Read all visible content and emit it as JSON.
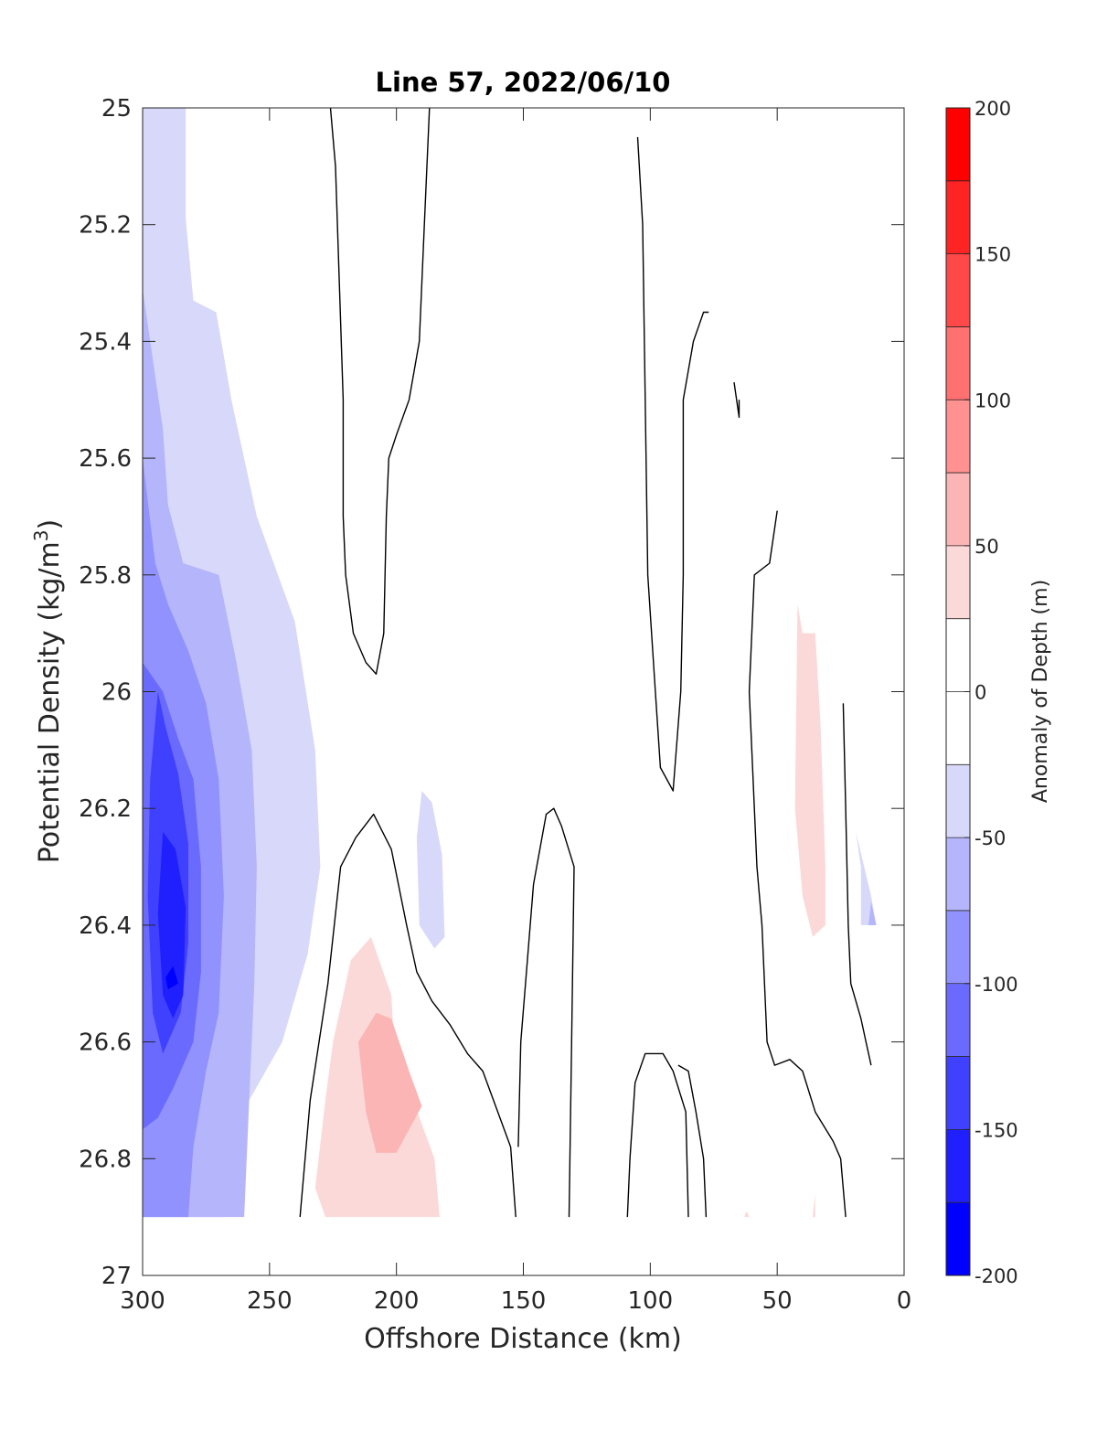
{
  "chart_data": {
    "type": "heatmap",
    "title": "Line 57, 2022/06/10",
    "xlabel": "Offshore Distance (km)",
    "ylabel": "Potential Density (kg/m",
    "ylabel_superscript": "3",
    "ylabel_close": ")",
    "xlim": [
      300,
      0
    ],
    "ylim": [
      27,
      25
    ],
    "x_reversed": true,
    "y_reversed": true,
    "xticks": [
      300,
      250,
      200,
      150,
      100,
      50,
      0
    ],
    "yticks": [
      25,
      25.2,
      25.4,
      25.6,
      25.8,
      26,
      26.2,
      26.4,
      26.6,
      26.8,
      27
    ],
    "xtick_labels": [
      "300",
      "250",
      "200",
      "150",
      "100",
      "50",
      "0"
    ],
    "ytick_labels": [
      "25",
      "25.2",
      "25.4",
      "25.6",
      "25.8",
      "26",
      "26.2",
      "26.4",
      "26.6",
      "26.8",
      "27"
    ],
    "colorbar": {
      "label": "Anomaly of Depth (m)",
      "range": [
        -200,
        200
      ],
      "step": 25,
      "ticks": [
        -200,
        -150,
        -100,
        -50,
        0,
        50,
        100,
        150,
        200
      ],
      "tick_labels": [
        "-200",
        "-150",
        "-100",
        "-50",
        "0",
        "50",
        "100",
        "150",
        "200"
      ],
      "colors": [
        "#0000ff",
        "#2020ff",
        "#4040ff",
        "#6a6aff",
        "#9292ff",
        "#b5b5fb",
        "#d8d8fb",
        "#ffffff",
        "#ffffff",
        "#fbd9d9",
        "#fbb5b5",
        "#ff9191",
        "#ff7070",
        "#ff4848",
        "#ff2424",
        "#ff0000"
      ]
    },
    "filled_regions": [
      {
        "name": "blue-25-to-50",
        "level": [
          -50,
          -25
        ],
        "color": "#d8d8fb",
        "polygon": [
          [
            300,
            25
          ],
          [
            283,
            25
          ],
          [
            283,
            25.19
          ],
          [
            280,
            25.33
          ],
          [
            271,
            25.35
          ],
          [
            265,
            25.5
          ],
          [
            255,
            25.7
          ],
          [
            240,
            25.88
          ],
          [
            232,
            26.1
          ],
          [
            230,
            26.3
          ],
          [
            235,
            26.45
          ],
          [
            245,
            26.6
          ],
          [
            258,
            26.7
          ],
          [
            266,
            26.75
          ],
          [
            270,
            26.82
          ],
          [
            268,
            26.9
          ],
          [
            300,
            26.9
          ]
        ]
      },
      {
        "name": "blue-50-to-75",
        "level": [
          -75,
          -50
        ],
        "color": "#b5b5fb",
        "polygon": [
          [
            300,
            25.31
          ],
          [
            292,
            25.55
          ],
          [
            290,
            25.68
          ],
          [
            284,
            25.78
          ],
          [
            270,
            25.8
          ],
          [
            263,
            25.95
          ],
          [
            257,
            26.1
          ],
          [
            255,
            26.3
          ],
          [
            256,
            26.5
          ],
          [
            258,
            26.7
          ],
          [
            260,
            26.9
          ],
          [
            300,
            26.9
          ]
        ]
      },
      {
        "name": "blue-75-to-100",
        "level": [
          -100,
          -75
        ],
        "color": "#9292ff",
        "polygon": [
          [
            300,
            25.6
          ],
          [
            295,
            25.78
          ],
          [
            290,
            25.85
          ],
          [
            282,
            25.93
          ],
          [
            275,
            26.02
          ],
          [
            270,
            26.15
          ],
          [
            268,
            26.35
          ],
          [
            270,
            26.55
          ],
          [
            275,
            26.65
          ],
          [
            280,
            26.78
          ],
          [
            282,
            26.9
          ],
          [
            300,
            26.9
          ]
        ]
      },
      {
        "name": "blue-100-to-125",
        "level": [
          -125,
          -100
        ],
        "color": "#6a6aff",
        "polygon": [
          [
            300,
            25.95
          ],
          [
            292,
            26.0
          ],
          [
            286,
            26.08
          ],
          [
            280,
            26.15
          ],
          [
            277,
            26.3
          ],
          [
            277,
            26.48
          ],
          [
            280,
            26.6
          ],
          [
            288,
            26.68
          ],
          [
            294,
            26.73
          ],
          [
            300,
            26.75
          ]
        ]
      },
      {
        "name": "blue-125-to-150",
        "level": [
          -150,
          -125
        ],
        "color": "#4040ff",
        "polygon": [
          [
            294,
            26.0
          ],
          [
            291,
            26.06
          ],
          [
            286,
            26.14
          ],
          [
            282,
            26.26
          ],
          [
            282,
            26.43
          ],
          [
            285,
            26.55
          ],
          [
            292,
            26.62
          ],
          [
            296,
            26.55
          ],
          [
            298,
            26.35
          ],
          [
            297,
            26.15
          ]
        ]
      },
      {
        "name": "blue-150-to-175",
        "level": [
          -175,
          -150
        ],
        "color": "#2020ff",
        "polygon": [
          [
            292,
            26.24
          ],
          [
            287,
            26.27
          ],
          [
            283,
            26.37
          ],
          [
            284,
            26.52
          ],
          [
            288,
            26.56
          ],
          [
            292,
            26.52
          ],
          [
            294,
            26.38
          ]
        ]
      },
      {
        "name": "blue-175-to-200",
        "level": [
          -200,
          -175
        ],
        "color": "#0000ff",
        "polygon": [
          [
            288,
            26.47
          ],
          [
            286,
            26.5
          ],
          [
            290,
            26.51
          ],
          [
            291,
            26.49
          ]
        ]
      },
      {
        "name": "blue-mid",
        "level": [
          -50,
          -25
        ],
        "color": "#d8d8fb",
        "polygon": [
          [
            190,
            26.17
          ],
          [
            186,
            26.19
          ],
          [
            182,
            26.28
          ],
          [
            181,
            26.42
          ],
          [
            185,
            26.44
          ],
          [
            191,
            26.4
          ],
          [
            192,
            26.25
          ]
        ]
      },
      {
        "name": "blue-right-edge-1",
        "level": [
          -50,
          -25
        ],
        "color": "#d8d8fb",
        "polygon": [
          [
            19,
            26.24
          ],
          [
            17,
            26.3
          ],
          [
            17,
            26.4
          ],
          [
            11,
            26.4
          ],
          [
            13,
            26.35
          ]
        ]
      },
      {
        "name": "blue-right-edge-2",
        "level": [
          -75,
          -50
        ],
        "color": "#b5b5fb",
        "polygon": [
          [
            13,
            26.36
          ],
          [
            14,
            26.4
          ],
          [
            11,
            26.4
          ]
        ]
      },
      {
        "name": "red-25-to-50-left",
        "level": [
          25,
          50
        ],
        "color": "#fbd9d9",
        "polygon": [
          [
            210,
            26.42
          ],
          [
            218,
            26.46
          ],
          [
            225,
            26.6
          ],
          [
            228,
            26.7
          ],
          [
            232,
            26.85
          ],
          [
            228,
            26.9
          ],
          [
            183,
            26.9
          ],
          [
            185,
            26.8
          ],
          [
            196,
            26.67
          ],
          [
            201,
            26.6
          ],
          [
            202,
            26.52
          ]
        ]
      },
      {
        "name": "red-50-to-75-left",
        "level": [
          50,
          75
        ],
        "color": "#fbb5b5",
        "polygon": [
          [
            208,
            26.55
          ],
          [
            215,
            26.6
          ],
          [
            212,
            26.72
          ],
          [
            208,
            26.79
          ],
          [
            200,
            26.79
          ],
          [
            190,
            26.71
          ],
          [
            195,
            26.65
          ],
          [
            202,
            26.56
          ]
        ]
      },
      {
        "name": "red-25-to-50-right",
        "level": [
          25,
          50
        ],
        "color": "#fbd9d9",
        "polygon": [
          [
            42,
            25.85
          ],
          [
            40,
            25.9
          ],
          [
            35,
            25.9
          ],
          [
            33,
            26.05
          ],
          [
            31,
            26.3
          ],
          [
            31,
            26.4
          ],
          [
            36,
            26.42
          ],
          [
            40,
            26.35
          ],
          [
            43,
            26.2
          ]
        ]
      },
      {
        "name": "red-tiny-right",
        "level": [
          25,
          50
        ],
        "color": "#fbd9d9",
        "polygon": [
          [
            35,
            26.86
          ],
          [
            35,
            26.9
          ],
          [
            36,
            26.9
          ]
        ]
      },
      {
        "name": "red-tiny-mid",
        "level": [
          25,
          50
        ],
        "color": "#fbd9d9",
        "polygon": [
          [
            62,
            26.89
          ],
          [
            61,
            26.9
          ],
          [
            63,
            26.9
          ]
        ]
      }
    ],
    "zero_contours": [
      {
        "name": "zero-contour-1",
        "points": [
          [
            226,
            25
          ],
          [
            224,
            25.1
          ],
          [
            221,
            25.5
          ],
          [
            221,
            25.7
          ],
          [
            220,
            25.8
          ],
          [
            217,
            25.9
          ],
          [
            212,
            25.95
          ],
          [
            208,
            25.97
          ],
          [
            205,
            25.9
          ],
          [
            204,
            25.7
          ],
          [
            203,
            25.6
          ],
          [
            200,
            25.56
          ],
          [
            195,
            25.5
          ],
          [
            191,
            25.4
          ],
          [
            189,
            25.2
          ],
          [
            187,
            25
          ]
        ]
      },
      {
        "name": "zero-contour-2",
        "points": [
          [
            105,
            25.05
          ],
          [
            103,
            25.2
          ],
          [
            102,
            25.5
          ],
          [
            101,
            25.8
          ],
          [
            98,
            26.0
          ],
          [
            96,
            26.13
          ],
          [
            91,
            26.17
          ],
          [
            88,
            26.0
          ],
          [
            87,
            25.8
          ],
          [
            87,
            25.5
          ],
          [
            83,
            25.4
          ],
          [
            79,
            25.35
          ],
          [
            77,
            25.35
          ]
        ]
      },
      {
        "name": "zero-contour-3",
        "points": [
          [
            67,
            25.47
          ],
          [
            65,
            25.53
          ],
          [
            65,
            25.5
          ]
        ]
      },
      {
        "name": "zero-contour-4",
        "points": [
          [
            50,
            25.69
          ],
          [
            53,
            25.78
          ],
          [
            59,
            25.8
          ],
          [
            61,
            26.0
          ],
          [
            60,
            26.1
          ],
          [
            58,
            26.3
          ],
          [
            56,
            26.4
          ],
          [
            55,
            26.5
          ],
          [
            54,
            26.6
          ],
          [
            51,
            26.64
          ],
          [
            45,
            26.63
          ],
          [
            40,
            26.65
          ],
          [
            35,
            26.72
          ],
          [
            28,
            26.77
          ],
          [
            25,
            26.8
          ],
          [
            23,
            26.9
          ]
        ]
      },
      {
        "name": "zero-contour-5",
        "points": [
          [
            24,
            26.02
          ],
          [
            23,
            26.2
          ],
          [
            22,
            26.4
          ],
          [
            21,
            26.5
          ],
          [
            17,
            26.56
          ],
          [
            15,
            26.6
          ],
          [
            13,
            26.64
          ]
        ]
      },
      {
        "name": "zero-contour-6",
        "points": [
          [
            238,
            26.9
          ],
          [
            234,
            26.7
          ],
          [
            227,
            26.5
          ],
          [
            222,
            26.3
          ],
          [
            216,
            26.25
          ],
          [
            209,
            26.21
          ],
          [
            202,
            26.27
          ],
          [
            196,
            26.4
          ],
          [
            192,
            26.48
          ],
          [
            186,
            26.53
          ],
          [
            179,
            26.57
          ],
          [
            172,
            26.62
          ],
          [
            166,
            26.65
          ],
          [
            155,
            26.78
          ],
          [
            154,
            26.84
          ],
          [
            153,
            26.9
          ]
        ]
      },
      {
        "name": "zero-contour-7",
        "points": [
          [
            132,
            26.9
          ],
          [
            131,
            26.6
          ],
          [
            130,
            26.3
          ],
          [
            135,
            26.23
          ],
          [
            138,
            26.2
          ],
          [
            141,
            26.21
          ],
          [
            146,
            26.33
          ],
          [
            151,
            26.6
          ],
          [
            152,
            26.78
          ]
        ]
      },
      {
        "name": "zero-contour-8",
        "points": [
          [
            109,
            26.9
          ],
          [
            108,
            26.8
          ],
          [
            106,
            26.67
          ],
          [
            102,
            26.62
          ],
          [
            95,
            26.62
          ],
          [
            91,
            26.65
          ],
          [
            86,
            26.72
          ],
          [
            85,
            26.9
          ]
        ]
      },
      {
        "name": "zero-contour-9",
        "points": [
          [
            78,
            26.9
          ],
          [
            79,
            26.8
          ],
          [
            82,
            26.72
          ],
          [
            85,
            26.65
          ],
          [
            89,
            26.64
          ]
        ]
      }
    ]
  }
}
